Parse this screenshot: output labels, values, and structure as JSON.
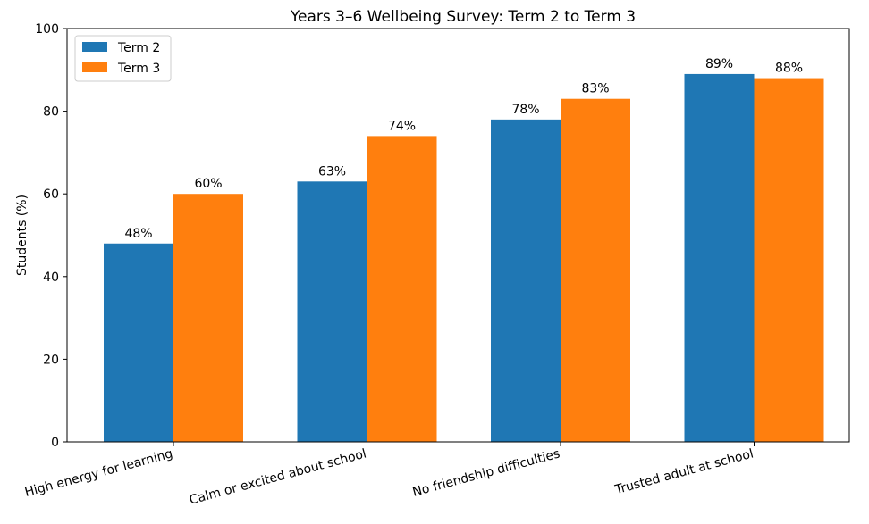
{
  "chart_data": {
    "type": "bar",
    "title": "Years 3–6 Wellbeing Survey: Term 2 to Term 3",
    "xlabel": "",
    "ylabel": "Students (%)",
    "ylim": [
      0,
      100
    ],
    "yticks": [
      "0",
      "20",
      "40",
      "60",
      "80",
      "100"
    ],
    "categories": [
      "High energy for learning",
      "Calm or excited about school",
      "No friendship difficulties",
      "Trusted adult at school"
    ],
    "series": [
      {
        "name": "Term 2",
        "color": "#1f77b4",
        "values": [
          48,
          63,
          78,
          89
        ],
        "labels": [
          "48%",
          "63%",
          "78%",
          "89%"
        ]
      },
      {
        "name": "Term 3",
        "color": "#ff7f0e",
        "values": [
          60,
          74,
          83,
          88
        ],
        "labels": [
          "60%",
          "74%",
          "83%",
          "88%"
        ]
      }
    ],
    "legend_position": "top-left",
    "grid": false
  }
}
